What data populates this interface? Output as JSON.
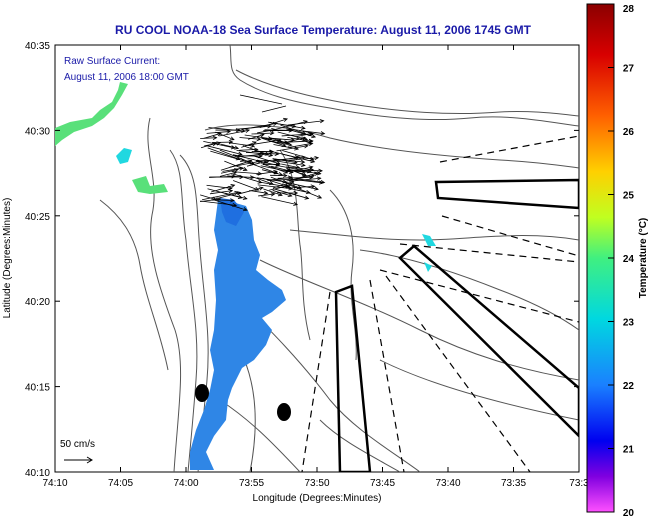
{
  "title": "RU COOL  NOAA-18  Sea Surface Temperature:  August 11, 2006 1745 GMT",
  "current_note": {
    "line1": "Raw Surface Current:",
    "line2": "August 11, 2006 18:00 GMT"
  },
  "scale_label": "50 cm/s",
  "x_axis": {
    "label": "Longitude (Degrees:Minutes)",
    "ticks": [
      "74:10",
      "74:05",
      "74:00",
      "73:55",
      "73:50",
      "73:45",
      "73:40",
      "73:35",
      "73:3"
    ]
  },
  "y_axis": {
    "label": "Latitude (Degrees:Minutes)",
    "ticks": [
      "40:35",
      "40:30",
      "40:25",
      "40:20",
      "40:15",
      "40:10"
    ]
  },
  "colorbar": {
    "label": "Temperature (°C)",
    "ticks": [
      "28",
      "27",
      "26",
      "25",
      "24",
      "23",
      "22",
      "21",
      "20"
    ],
    "range": [
      20,
      28
    ]
  },
  "colors": {
    "title_text": "#1a1aa8",
    "colorbar_gradient": [
      "#8b0000",
      "#ff0000",
      "#ff8000",
      "#ffff00",
      "#80ff40",
      "#00e0d0",
      "#1a90ff",
      "#0000ff",
      "#ff40ff"
    ],
    "sst_blue": "#2f86e6",
    "sst_green": "#59e07a",
    "sst_cyan": "#20d8e0"
  }
}
